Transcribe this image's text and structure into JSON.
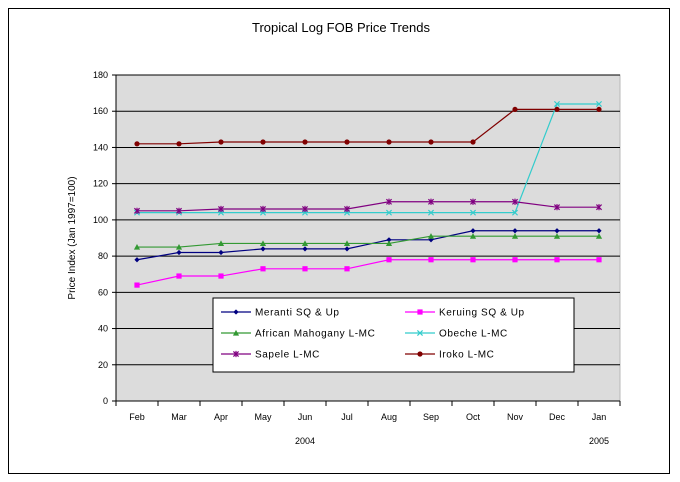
{
  "chart_data": {
    "type": "line",
    "title": "Tropical Log FOB Price Trends",
    "ylabel": "Price Index (Jan 1997=100)",
    "xlabel": "",
    "ylim": [
      0,
      180
    ],
    "yticks": [
      0,
      20,
      40,
      60,
      80,
      100,
      120,
      140,
      160,
      180
    ],
    "categories": [
      "Feb",
      "Mar",
      "Apr",
      "May",
      "Jun",
      "Jul",
      "Aug",
      "Sep",
      "Oct",
      "Nov",
      "Dec",
      "Jan"
    ],
    "year_labels": [
      {
        "label": "2004",
        "category_index": 4
      },
      {
        "label": "2005",
        "category_index": 11
      }
    ],
    "grid": "horizontal",
    "legend_position": "bottom-center",
    "series": [
      {
        "name": "Meranti SQ & Up",
        "color": "#000080",
        "marker": "diamond",
        "values": [
          78,
          82,
          82,
          84,
          84,
          84,
          89,
          89,
          94,
          94,
          94,
          94
        ]
      },
      {
        "name": "Keruing SQ & Up",
        "color": "#ff00ff",
        "marker": "square",
        "values": [
          64,
          69,
          69,
          73,
          73,
          73,
          78,
          78,
          78,
          78,
          78,
          78
        ]
      },
      {
        "name": "African Mahogany L-MC",
        "color": "#339933",
        "marker": "triangle",
        "values": [
          85,
          85,
          87,
          87,
          87,
          87,
          87,
          91,
          91,
          91,
          91,
          91
        ]
      },
      {
        "name": "Obeche L-MC",
        "color": "#33cccc",
        "marker": "x",
        "values": [
          104,
          104,
          104,
          104,
          104,
          104,
          104,
          104,
          104,
          104,
          164,
          164
        ]
      },
      {
        "name": "Sapele L-MC",
        "color": "#800080",
        "marker": "star",
        "values": [
          105,
          105,
          106,
          106,
          106,
          106,
          110,
          110,
          110,
          110,
          107,
          107
        ]
      },
      {
        "name": "Iroko L-MC",
        "color": "#800000",
        "marker": "circle",
        "values": [
          142,
          142,
          143,
          143,
          143,
          143,
          143,
          143,
          143,
          161,
          161,
          161
        ]
      }
    ]
  }
}
